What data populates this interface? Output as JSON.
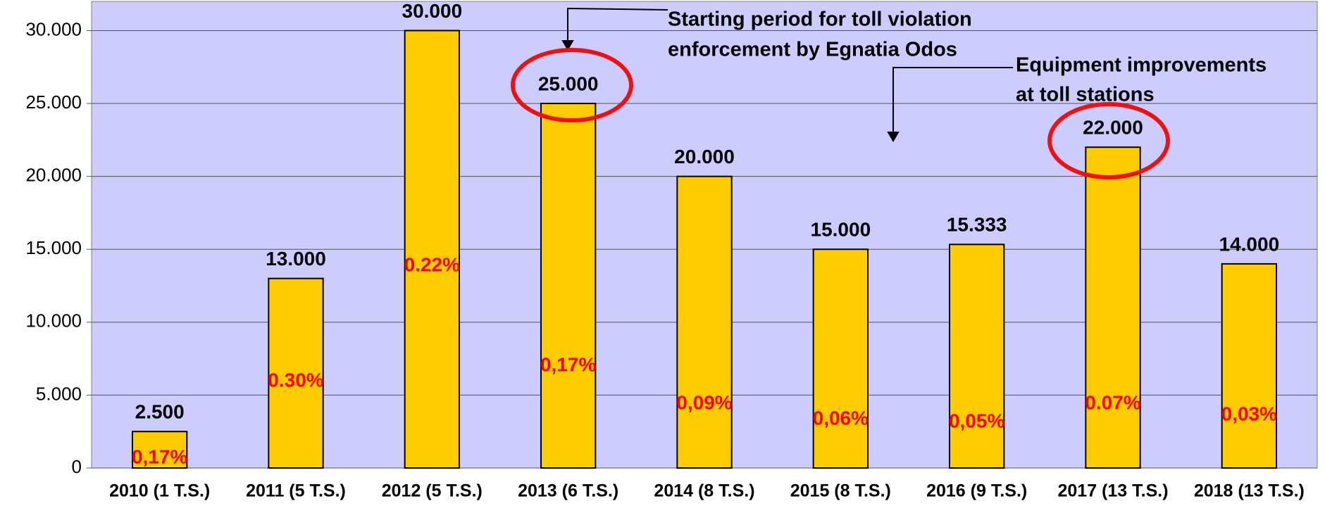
{
  "chart_data": {
    "type": "bar",
    "categories": [
      "2010 (1 T.S.)",
      "2011 (5 T.S.)",
      "2012 (5 T.S.)",
      "2013 (6 T.S.)",
      "2014 (8 T.S.)",
      "2015 (8 T.S.)",
      "2016 (9 T.S.)",
      "2017 (13 T.S.)",
      "2018 (13 T.S.)"
    ],
    "values": [
      2500,
      13000,
      30000,
      25000,
      20000,
      15000,
      15333,
      22000,
      14000
    ],
    "value_labels": [
      "2.500",
      "13.000",
      "30.000",
      "25.000",
      "20.000",
      "15.000",
      "15.333",
      "22.000",
      "14.000"
    ],
    "percent_labels": [
      "0,17%",
      "0.30%",
      "0.22%",
      "0,17%",
      "0,09%",
      "0,06%",
      "0,05%",
      "0.07%",
      "0,03%"
    ],
    "color": "#ffcc00",
    "ylim": [
      0,
      32000
    ],
    "yticks": [
      0,
      {
        "value": 5000,
        "label": "5.000"
      },
      {
        "value": 10000,
        "label": "10.000"
      },
      {
        "value": 15000,
        "label": "15.000"
      },
      {
        "value": 20000,
        "label": "20.000"
      },
      {
        "value": 25000,
        "label": "25.000"
      },
      {
        "value": 30000,
        "label": "30.000"
      }
    ],
    "grid": true,
    "annotations": [
      {
        "lines": [
          "Starting period for toll violation",
          "enforcement by Egnatia Odos"
        ]
      },
      {
        "lines": [
          "Equipment improvements",
          "at toll stations"
        ]
      }
    ]
  }
}
